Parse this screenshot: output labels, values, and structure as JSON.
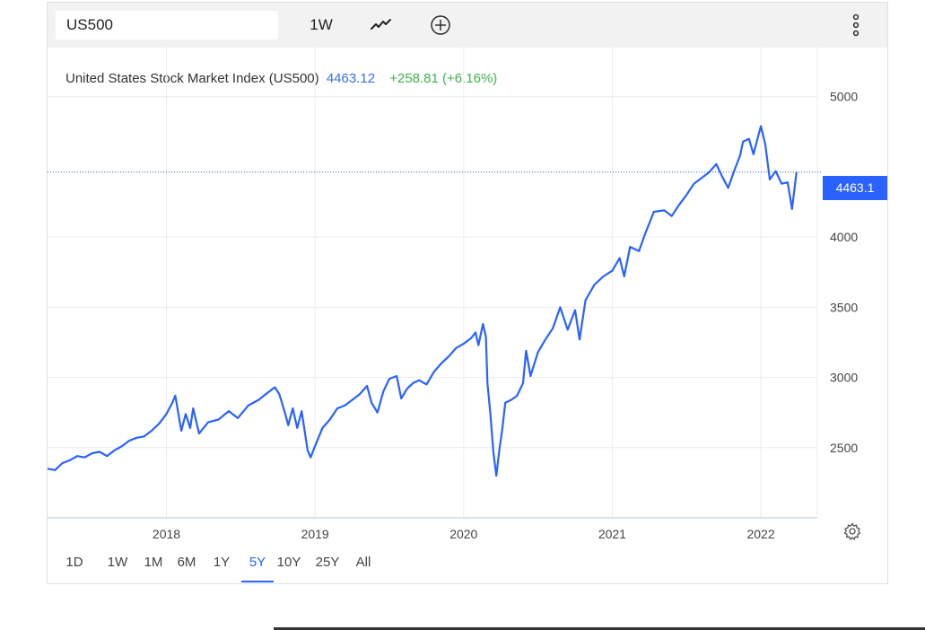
{
  "toolbar": {
    "symbol": "US500",
    "interval": "1W",
    "chart_type_icon": "line-chart-icon",
    "add_icon": "plus-circle-icon",
    "menu_icon": "vertical-dots-icon"
  },
  "header": {
    "name": "United States Stock Market Index (US500)",
    "price": "4463.12",
    "change": "+258.81 (+6.16%)"
  },
  "price_tag": "4463.1",
  "ranges": [
    "1D",
    "1W",
    "1M",
    "6M",
    "1Y",
    "5Y",
    "10Y",
    "25Y",
    "All"
  ],
  "active_range": "5Y",
  "settings_icon": "gear-icon",
  "colors": {
    "line": "#2962ff",
    "accent": "#2962ff",
    "positive": "#3cb44b",
    "price_text": "#3b6fe0"
  },
  "chart_data": {
    "type": "line",
    "x_ticks": [
      "2018",
      "2019",
      "2020",
      "2021",
      "2022"
    ],
    "y_ticks": [
      "2500",
      "3000",
      "3500",
      "4000",
      "5000"
    ],
    "ylim": [
      2000,
      5350
    ],
    "xlim": [
      2017.2,
      2022.38
    ],
    "last_value": 4463.1,
    "series": [
      {
        "values": [
          [
            2017.2,
            2350
          ],
          [
            2017.25,
            2340
          ],
          [
            2017.3,
            2390
          ],
          [
            2017.35,
            2410
          ],
          [
            2017.4,
            2440
          ],
          [
            2017.45,
            2430
          ],
          [
            2017.5,
            2460
          ],
          [
            2017.55,
            2470
          ],
          [
            2017.6,
            2440
          ],
          [
            2017.65,
            2480
          ],
          [
            2017.7,
            2510
          ],
          [
            2017.75,
            2550
          ],
          [
            2017.8,
            2570
          ],
          [
            2017.85,
            2580
          ],
          [
            2017.9,
            2620
          ],
          [
            2017.95,
            2670
          ],
          [
            2018.0,
            2740
          ],
          [
            2018.04,
            2820
          ],
          [
            2018.06,
            2870
          ],
          [
            2018.1,
            2620
          ],
          [
            2018.13,
            2740
          ],
          [
            2018.16,
            2640
          ],
          [
            2018.18,
            2780
          ],
          [
            2018.22,
            2600
          ],
          [
            2018.28,
            2680
          ],
          [
            2018.35,
            2700
          ],
          [
            2018.42,
            2760
          ],
          [
            2018.48,
            2710
          ],
          [
            2018.55,
            2800
          ],
          [
            2018.62,
            2840
          ],
          [
            2018.68,
            2890
          ],
          [
            2018.73,
            2930
          ],
          [
            2018.76,
            2880
          ],
          [
            2018.8,
            2740
          ],
          [
            2018.82,
            2660
          ],
          [
            2018.85,
            2780
          ],
          [
            2018.88,
            2640
          ],
          [
            2018.91,
            2760
          ],
          [
            2018.95,
            2480
          ],
          [
            2018.97,
            2430
          ],
          [
            2019.0,
            2510
          ],
          [
            2019.05,
            2640
          ],
          [
            2019.1,
            2700
          ],
          [
            2019.15,
            2780
          ],
          [
            2019.2,
            2800
          ],
          [
            2019.25,
            2840
          ],
          [
            2019.3,
            2880
          ],
          [
            2019.35,
            2940
          ],
          [
            2019.38,
            2820
          ],
          [
            2019.42,
            2750
          ],
          [
            2019.46,
            2900
          ],
          [
            2019.5,
            2990
          ],
          [
            2019.55,
            3010
          ],
          [
            2019.58,
            2850
          ],
          [
            2019.62,
            2920
          ],
          [
            2019.66,
            2960
          ],
          [
            2019.7,
            2980
          ],
          [
            2019.75,
            2950
          ],
          [
            2019.8,
            3040
          ],
          [
            2019.85,
            3100
          ],
          [
            2019.9,
            3150
          ],
          [
            2019.95,
            3210
          ],
          [
            2020.0,
            3240
          ],
          [
            2020.05,
            3280
          ],
          [
            2020.08,
            3320
          ],
          [
            2020.1,
            3230
          ],
          [
            2020.13,
            3380
          ],
          [
            2020.15,
            3290
          ],
          [
            2020.16,
            2960
          ],
          [
            2020.18,
            2740
          ],
          [
            2020.2,
            2470
          ],
          [
            2020.22,
            2300
          ],
          [
            2020.24,
            2480
          ],
          [
            2020.26,
            2630
          ],
          [
            2020.28,
            2820
          ],
          [
            2020.32,
            2840
          ],
          [
            2020.36,
            2870
          ],
          [
            2020.4,
            2960
          ],
          [
            2020.42,
            3190
          ],
          [
            2020.45,
            3010
          ],
          [
            2020.5,
            3180
          ],
          [
            2020.55,
            3270
          ],
          [
            2020.6,
            3350
          ],
          [
            2020.65,
            3500
          ],
          [
            2020.7,
            3340
          ],
          [
            2020.75,
            3480
          ],
          [
            2020.78,
            3270
          ],
          [
            2020.82,
            3550
          ],
          [
            2020.88,
            3660
          ],
          [
            2020.94,
            3720
          ],
          [
            2021.0,
            3760
          ],
          [
            2021.05,
            3850
          ],
          [
            2021.08,
            3720
          ],
          [
            2021.12,
            3930
          ],
          [
            2021.18,
            3900
          ],
          [
            2021.22,
            4020
          ],
          [
            2021.28,
            4180
          ],
          [
            2021.35,
            4190
          ],
          [
            2021.4,
            4150
          ],
          [
            2021.45,
            4230
          ],
          [
            2021.5,
            4300
          ],
          [
            2021.55,
            4380
          ],
          [
            2021.6,
            4420
          ],
          [
            2021.65,
            4460
          ],
          [
            2021.7,
            4520
          ],
          [
            2021.74,
            4430
          ],
          [
            2021.78,
            4350
          ],
          [
            2021.82,
            4470
          ],
          [
            2021.86,
            4580
          ],
          [
            2021.88,
            4680
          ],
          [
            2021.92,
            4700
          ],
          [
            2021.95,
            4590
          ],
          [
            2021.98,
            4710
          ],
          [
            2022.0,
            4790
          ],
          [
            2022.03,
            4660
          ],
          [
            2022.06,
            4410
          ],
          [
            2022.1,
            4470
          ],
          [
            2022.14,
            4380
          ],
          [
            2022.18,
            4390
          ],
          [
            2022.21,
            4200
          ],
          [
            2022.24,
            4463
          ]
        ]
      }
    ]
  }
}
